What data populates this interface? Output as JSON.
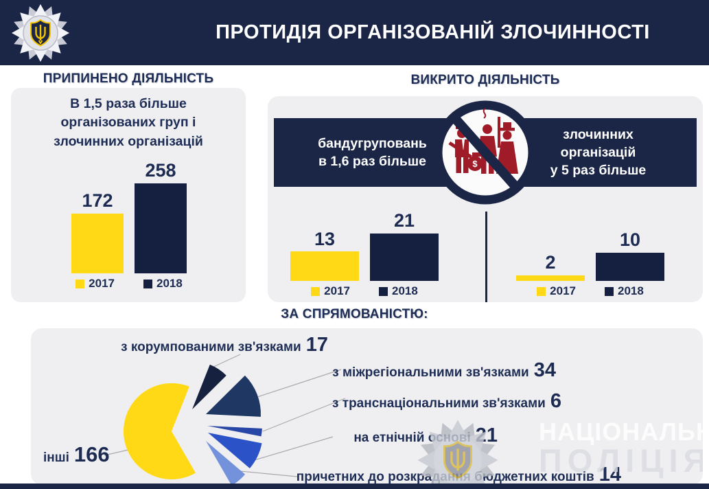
{
  "header": {
    "title": "ПРОТИДІЯ ОРГАНІЗОВАНІЙ ЗЛОЧИННОСТІ"
  },
  "stopped": {
    "heading": "ПРИПИНЕНО ДІЯЛЬНІСТЬ",
    "note": "В 1,5 раза більше організованих груп і злочинних організацій"
  },
  "exposed": {
    "heading": "ВИКРИТО ДІЯЛЬНІСТЬ",
    "banner_left": {
      "line1": "бандугруповань",
      "line2": "в 1,6 раз більше"
    },
    "banner_right": {
      "line1": "злочинних",
      "line2": "організацій",
      "line3": "у 5 раз більше"
    }
  },
  "orientation": {
    "heading": "ЗА СПРЯМОВАНІСТЮ:"
  },
  "watermark": {
    "line1": "НАЦІОНАЛЬНА",
    "line2": "ПОЛІЦІЯ"
  },
  "icons": {
    "logo": "police-badge-star-with-trident",
    "prohibition": "no-gangsters-sign",
    "watermark_badge": "police-badge-star-faded"
  },
  "colors": {
    "navy": "#1b2546",
    "bar_navy": "#152040",
    "yellow": "#ffd916",
    "card_bg": "#efeff1",
    "heading_navy": "#1e2d55",
    "figure_red": "#9e1b27",
    "leader_line": "#a9a9ad"
  },
  "chart_data": [
    {
      "type": "bar",
      "title": "ПРИПИНЕНО ДІЯЛЬНІСТЬ — організованих груп і злочинних організацій",
      "categories": [
        "2017",
        "2018"
      ],
      "values": [
        172,
        258
      ],
      "colors": [
        "#ffd916",
        "#152040"
      ],
      "legend_position": "bottom"
    },
    {
      "type": "bar",
      "title": "бандугруповань в 1,6 раз більше",
      "categories": [
        "2017",
        "2018"
      ],
      "values": [
        13,
        21
      ],
      "colors": [
        "#ffd916",
        "#152040"
      ],
      "legend_position": "bottom"
    },
    {
      "type": "bar",
      "title": "злочинних організацій у 5 раз більше",
      "categories": [
        "2017",
        "2018"
      ],
      "values": [
        2,
        10
      ],
      "colors": [
        "#ffd916",
        "#152040"
      ],
      "legend_position": "bottom"
    },
    {
      "type": "pie",
      "title": "ЗА СПРЯМОВАНІСТЮ:",
      "slices": [
        {
          "label": "з корумпованими зв'язками",
          "value": 17,
          "color": "#16213f"
        },
        {
          "label": "з міжрегіональними зв'язками",
          "value": 34,
          "color": "#1f3763"
        },
        {
          "label": "з транснаціональними зв'язками",
          "value": 6,
          "color": "#2746a6"
        },
        {
          "label": "на етнічній основі",
          "value": 21,
          "color": "#2b52c7"
        },
        {
          "label": "причетних до розкрадання бюджетних коштів",
          "value": 14,
          "color": "#7492dc"
        },
        {
          "label": "інші",
          "value": 166,
          "color": "#ffd916"
        }
      ]
    }
  ]
}
